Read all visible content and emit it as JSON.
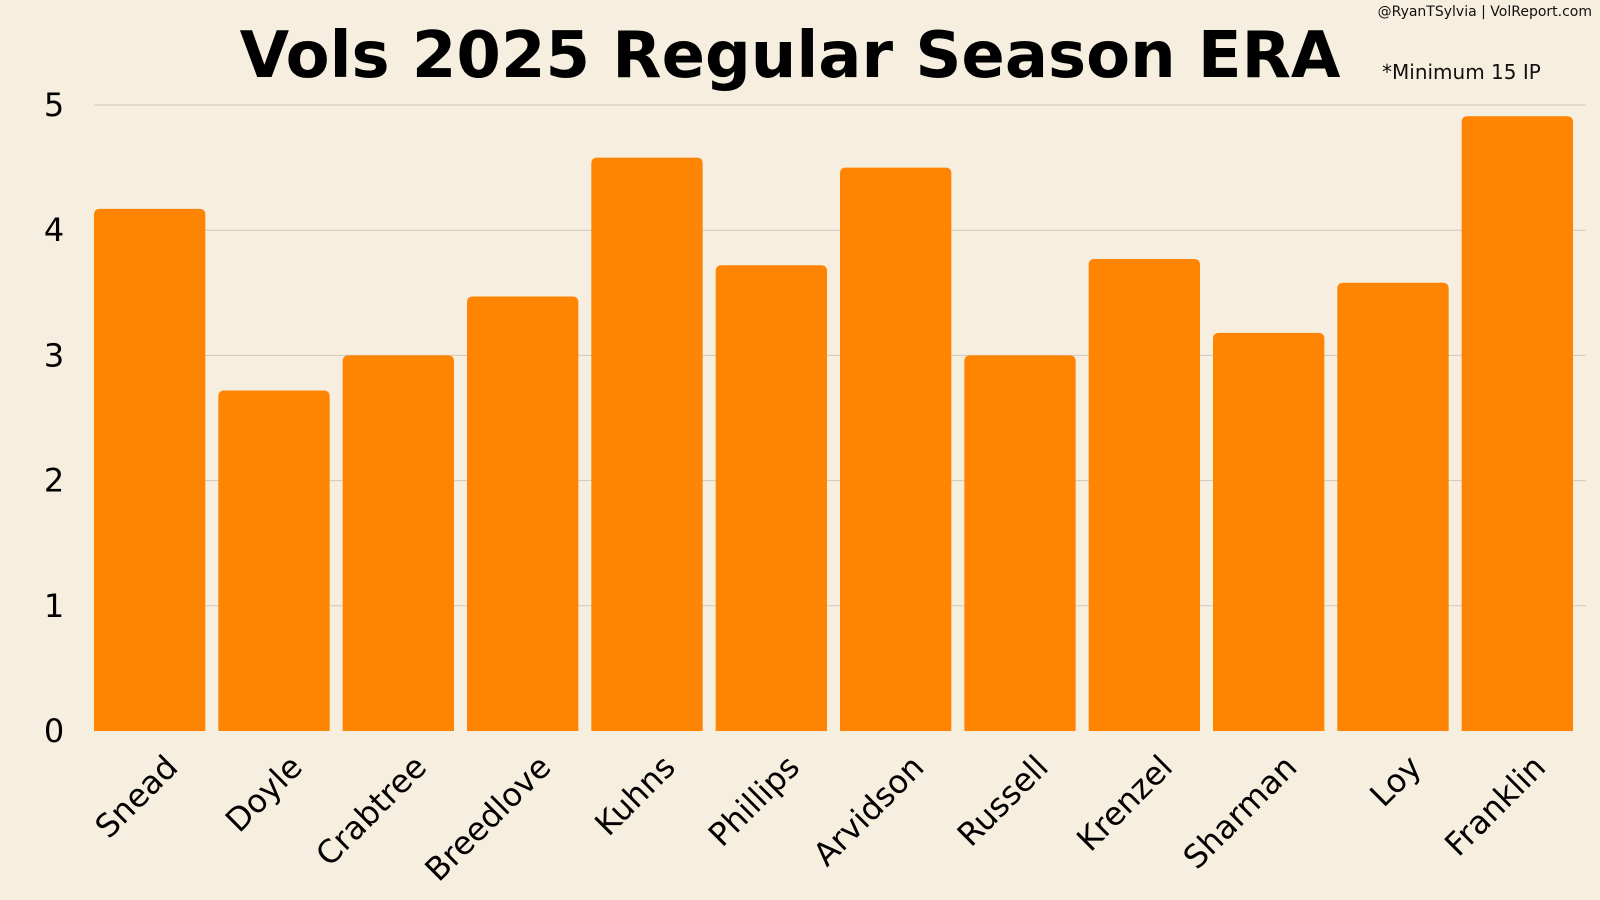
{
  "chart_data": {
    "type": "bar",
    "title": "Vols 2025 Regular Season ERA",
    "annotation_credit": "@RyanTSylvia | VolReport.com",
    "annotation_note": "*Minimum 15 IP",
    "xlabel": "",
    "ylabel": "",
    "categories": [
      "Snead",
      "Doyle",
      "Crabtree",
      "Breedlove",
      "Kuhns",
      "Phillips",
      "Arvidson",
      "Russell",
      "Krenzel",
      "Sharman",
      "Loy",
      "Franklin"
    ],
    "values": [
      4.17,
      2.72,
      3.0,
      3.47,
      4.58,
      3.72,
      4.5,
      3.0,
      3.77,
      3.18,
      3.58,
      4.91
    ],
    "ylim": [
      0,
      5
    ],
    "yticks": [
      0,
      1,
      2,
      3,
      4,
      5
    ],
    "grid": true,
    "legend": "none",
    "bar_color": "#ff8402",
    "background_color": "#f6eedf"
  }
}
